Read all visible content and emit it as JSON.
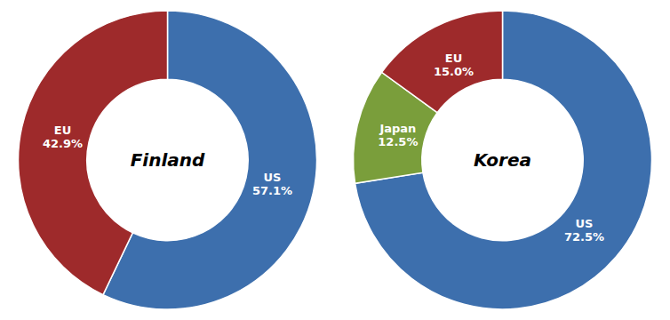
{
  "chart_data": [
    {
      "type": "donut",
      "title": "Finland",
      "categories": [
        "US",
        "EU"
      ],
      "values": [
        57.1,
        42.9
      ],
      "value_labels": [
        "57.1%",
        "42.9%"
      ],
      "colors": [
        "#3d6fad",
        "#9e2a2b"
      ],
      "data_labels": true
    },
    {
      "type": "donut",
      "title": "Korea",
      "categories": [
        "US",
        "Japan",
        "EU"
      ],
      "values": [
        72.5,
        12.5,
        15.0
      ],
      "value_labels": [
        "72.5%",
        "12.5%",
        "15.0%"
      ],
      "colors": [
        "#3d6fad",
        "#7a9e3b",
        "#9e2a2b"
      ],
      "data_labels": true
    }
  ]
}
